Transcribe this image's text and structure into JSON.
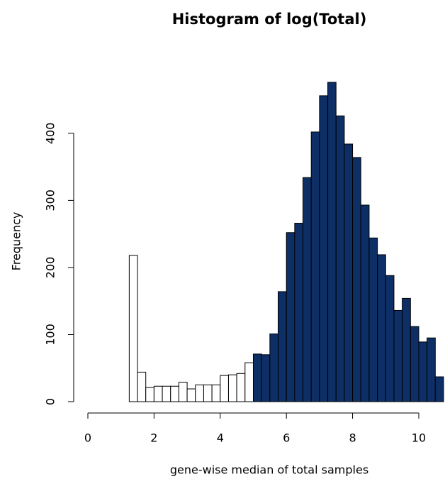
{
  "chart_data": {
    "type": "histogram",
    "title": "Histogram of log(Total)",
    "x_label": "gene-wise median of total samples",
    "y_label": "Frequency",
    "bins": [
      0,
      0.25,
      0.5,
      0.75,
      1,
      1.25,
      1.5,
      1.75,
      2,
      2.25,
      2.5,
      2.75,
      3,
      3.25,
      3.5,
      3.75,
      4,
      4.25,
      4.5,
      4.75,
      5,
      5.25,
      5.5,
      5.75,
      6,
      6.25,
      6.5,
      6.75,
      7,
      7.25,
      7.5,
      7.75,
      8,
      8.25,
      8.5,
      8.75,
      9,
      9.25,
      9.5,
      9.75,
      10,
      10.25,
      10.5,
      10.75
    ],
    "values": [
      0,
      0,
      0,
      0,
      0,
      218,
      44,
      21,
      23,
      23,
      23,
      29,
      19,
      25,
      25,
      25,
      39,
      40,
      42,
      58,
      71,
      70,
      101,
      164,
      252,
      266,
      334,
      402,
      456,
      476,
      426,
      384,
      364,
      293,
      244,
      219,
      188,
      136,
      154,
      112,
      89,
      95,
      37
    ],
    "bar_colors": [
      "#ffffff",
      "#ffffff",
      "#ffffff",
      "#ffffff",
      "#ffffff",
      "#ffffff",
      "#ffffff",
      "#ffffff",
      "#ffffff",
      "#ffffff",
      "#ffffff",
      "#ffffff",
      "#ffffff",
      "#ffffff",
      "#ffffff",
      "#ffffff",
      "#ffffff",
      "#ffffff",
      "#ffffff",
      "#ffffff",
      "#0d2f66",
      "#0d2f66",
      "#0d2f66",
      "#0d2f66",
      "#0d2f66",
      "#0d2f66",
      "#0d2f66",
      "#0d2f66",
      "#0d2f66",
      "#0d2f66",
      "#0d2f66",
      "#0d2f66",
      "#0d2f66",
      "#0d2f66",
      "#0d2f66",
      "#0d2f66",
      "#0d2f66",
      "#0d2f66",
      "#0d2f66",
      "#0d2f66",
      "#0d2f66",
      "#0d2f66",
      "#0d2f66"
    ],
    "xlim": [
      0,
      10.75
    ],
    "ylim": [
      0,
      476
    ],
    "xticks": [
      0,
      2,
      4,
      6,
      8,
      10
    ],
    "yticks": [
      0,
      100,
      200,
      300,
      400
    ]
  }
}
